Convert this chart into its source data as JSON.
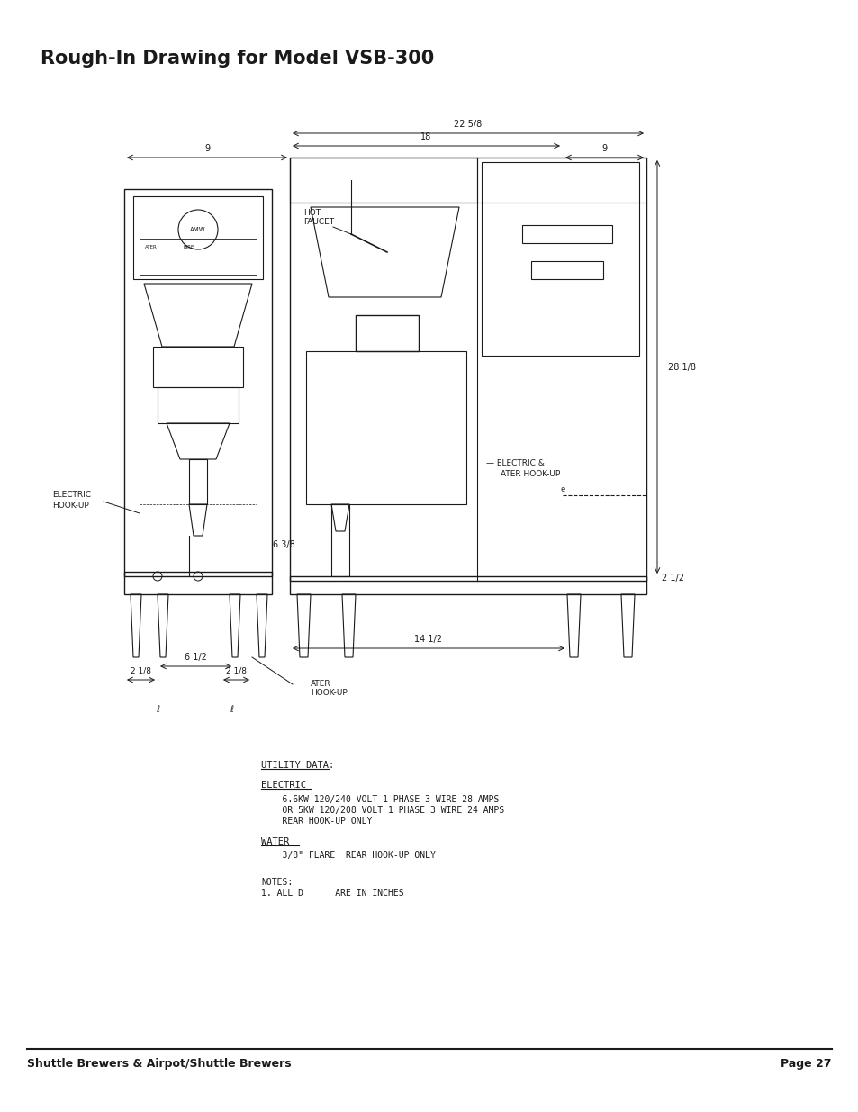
{
  "title": "Rough-In Drawing for Model VSB-300",
  "footer_left": "Shuttle Brewers & Airpot/Shuttle Brewers",
  "footer_right": "Page 27",
  "bg_color": "#ffffff",
  "text_color": "#1a1a1a",
  "utility_data_title": "UTILITY DATA:",
  "electric_header": "ELECTRIC",
  "electric_line1": "    6.6KW 120/240 VOLT 1 PHASE 3 WIRE 28 AMPS",
  "electric_line2": "    OR 5KW 120/208 VOLT 1 PHASE 3 WIRE 24 AMPS",
  "electric_line3": "    REAR HOOK-UP ONLY",
  "water_header": "WATER",
  "water_line1": "    3/8\" FLARE  REAR HOOK-UP ONLY",
  "notes_header": "NOTES:",
  "notes_line1": "1. ALL D      ARE IN INCHES"
}
